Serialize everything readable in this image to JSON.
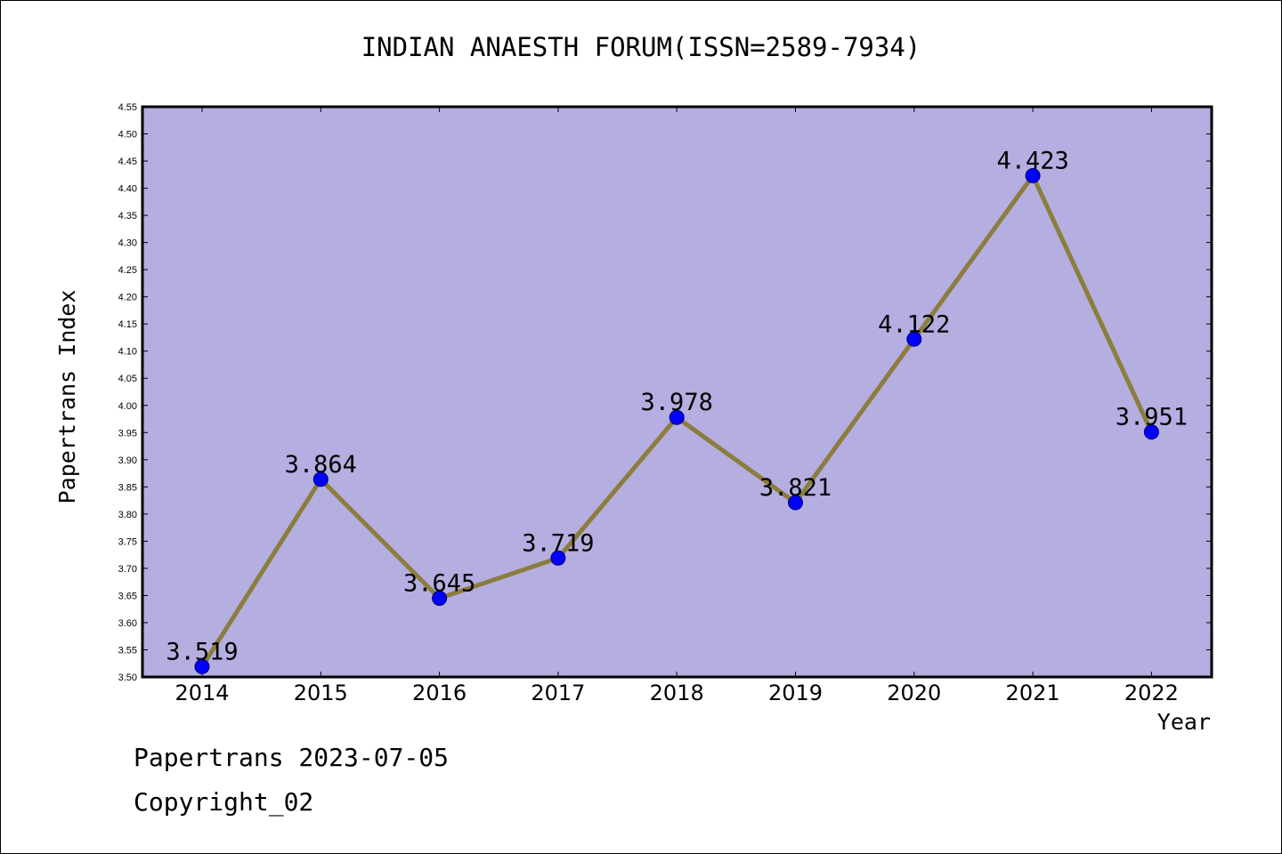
{
  "chart_data": {
    "type": "line",
    "title": "INDIAN ANAESTH FORUM(ISSN=2589-7934)",
    "xlabel": "Year",
    "ylabel": "Papertrans Index",
    "categories": [
      "2014",
      "2015",
      "2016",
      "2017",
      "2018",
      "2019",
      "2020",
      "2021",
      "2022"
    ],
    "series": [
      {
        "values": [
          3.519,
          3.864,
          3.645,
          3.719,
          3.978,
          3.821,
          4.122,
          4.423,
          3.951
        ],
        "data_labels": [
          "3.519",
          "3.864",
          "3.645",
          "3.719",
          "3.978",
          "3.821",
          "4.122",
          "4.423",
          "3.951"
        ]
      }
    ],
    "ylim": [
      3.5,
      4.55
    ],
    "yticks": [
      "3.50",
      "3.55",
      "3.60",
      "3.65",
      "3.70",
      "3.75",
      "3.80",
      "3.85",
      "3.90",
      "3.95",
      "4.00",
      "4.05",
      "4.10",
      "4.15",
      "4.20",
      "4.25",
      "4.30",
      "4.35",
      "4.40",
      "4.45",
      "4.50",
      "4.55"
    ],
    "grid": false,
    "colors": {
      "plot_background": "#b5aee0",
      "line": "#8b7d3c",
      "marker": "#0000ff",
      "axis": "#000000"
    }
  },
  "footer": {
    "source": "Papertrans 2023-07-05",
    "copyright": "Copyright_02"
  }
}
